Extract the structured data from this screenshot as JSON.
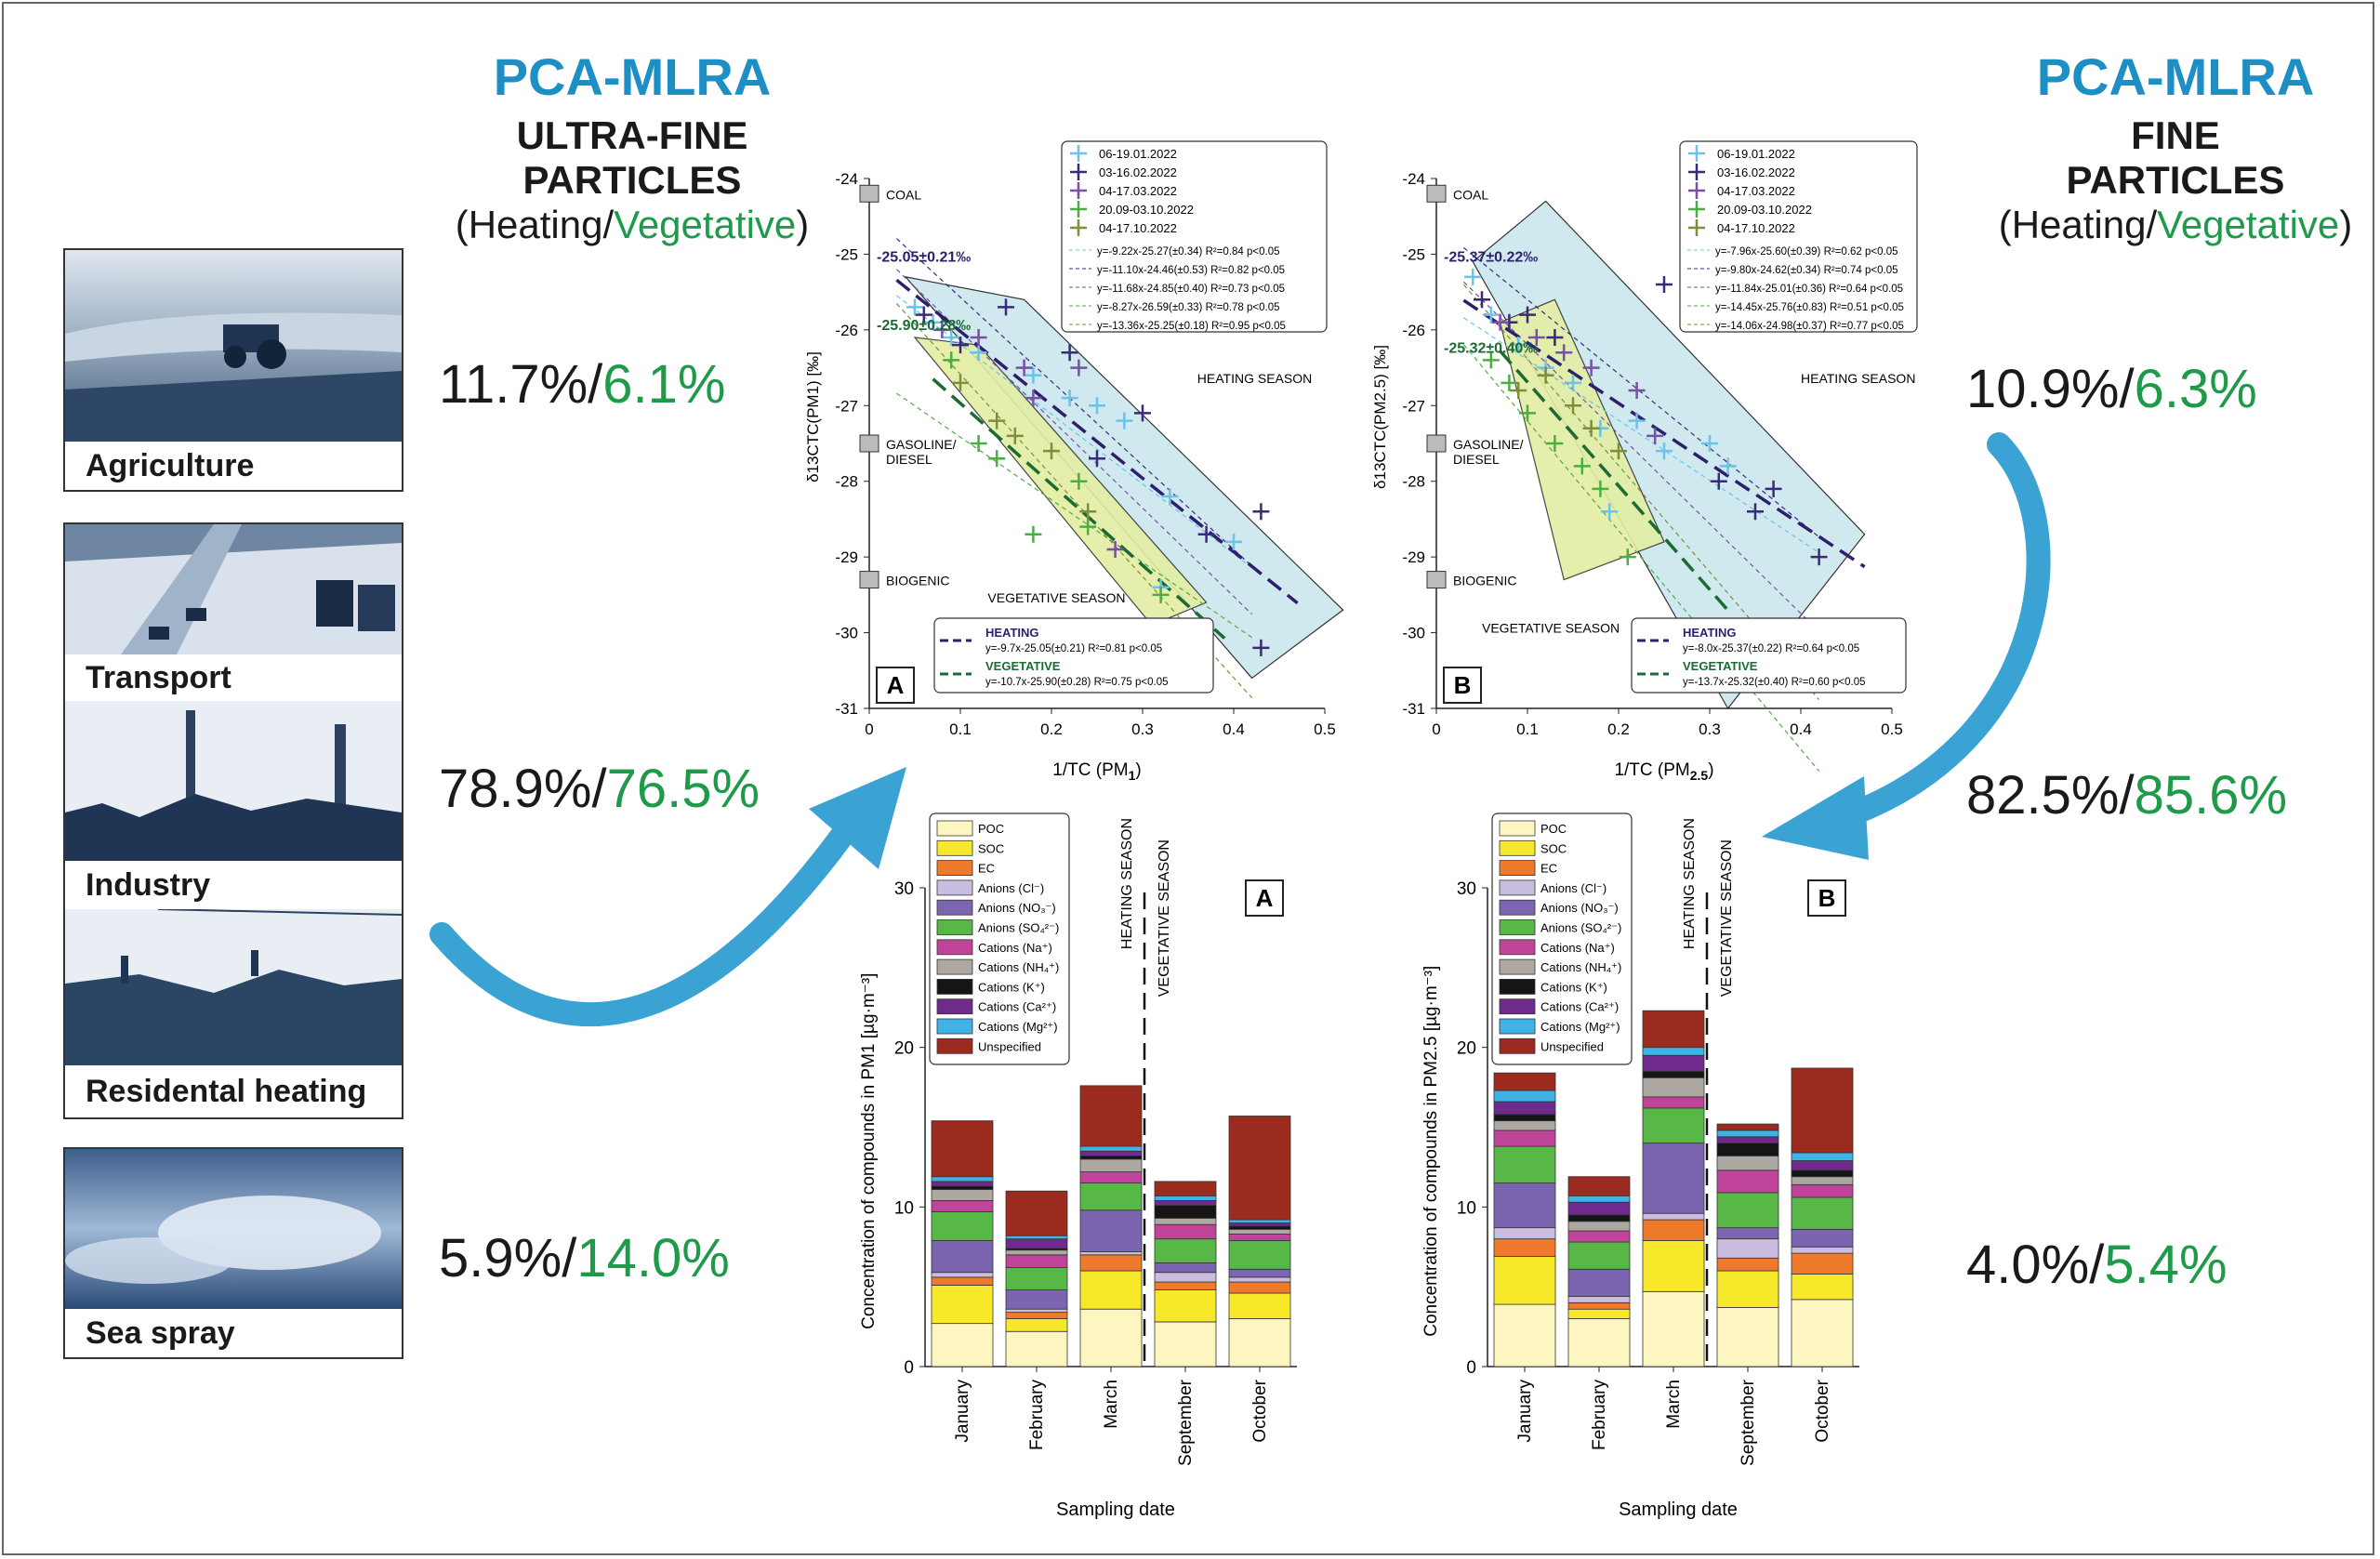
{
  "left_panel": {
    "method": "PCA-MLRA",
    "title_line1": "ULTRA-FINE",
    "title_line2": "PARTICLES",
    "subtitle_prefix": "(Heating/",
    "subtitle_green": "Vegetative",
    "subtitle_suffix": ")"
  },
  "right_panel": {
    "method": "PCA-MLRA",
    "title_line1": "FINE",
    "title_line2": "PARTICLES",
    "subtitle_prefix": "(Heating/",
    "subtitle_green": "Vegetative",
    "subtitle_suffix": ")"
  },
  "sources": [
    {
      "label": "Agriculture",
      "icon": "tractor-field-photo"
    },
    {
      "label": "Transport",
      "icon": "highway-traffic-photo"
    },
    {
      "label": "Industry",
      "icon": "industrial-chimney-photo"
    },
    {
      "label": "Residental heating",
      "icon": "rooftops-chimneys-photo"
    },
    {
      "label": "Sea spray",
      "icon": "ocean-waves-photo"
    }
  ],
  "contributions_uf": [
    {
      "heating": "11.7%/",
      "vegetative": "6.1%"
    },
    {
      "heating": "78.9%/",
      "vegetative": "76.5%"
    },
    {
      "heating": "5.9%/",
      "vegetative": "14.0%"
    }
  ],
  "contributions_f": [
    {
      "heating": "10.9%/",
      "vegetative": "6.3%"
    },
    {
      "heating": "82.5%/",
      "vegetative": "85.6%"
    },
    {
      "heating": "4.0%/",
      "vegetative": "5.4%"
    }
  ],
  "colors": {
    "accent_blue": "#1d8fc4",
    "arrow_blue": "#3aa3d4",
    "green_text": "#1e9a4a",
    "heating_line": "#2e1f6e",
    "vegetative_line": "#1b6b32",
    "heating_zone": "#cfe9ef",
    "vegetative_zone": "#e3eea3"
  },
  "chart_data": [
    {
      "type": "scatter",
      "panel_letter": "A",
      "xlabel_main": "1/TC (PM",
      "xlabel_sub": "1",
      "xlabel_end": ")",
      "ylabel_main": "δ13CTC(PM1) [‰]",
      "xlim": [
        0,
        0.5
      ],
      "ylim": [
        -31,
        -24
      ],
      "x_ticks": [
        "0",
        "0.1",
        "0.2",
        "0.3",
        "0.4",
        "0.5"
      ],
      "y_ticks": [
        "-24",
        "-25",
        "-26",
        "-27",
        "-28",
        "-29",
        "-30",
        "-31"
      ],
      "reference_markers": [
        {
          "label": "COAL",
          "y": -24.2
        },
        {
          "label": "GASOLINE/",
          "label2": "DIESEL",
          "y": -27.5
        },
        {
          "label": "BIOGENIC",
          "y": -29.3
        }
      ],
      "legend_series": [
        {
          "name": "06-19.01.2022",
          "color": "#6cc2e8"
        },
        {
          "name": "03-16.02.2022",
          "color": "#3a2a7a"
        },
        {
          "name": "04-17.03.2022",
          "color": "#7a4fa8"
        },
        {
          "name": "20.09-03.10.2022",
          "color": "#4cae42"
        },
        {
          "name": "04-17.10.2022",
          "color": "#7d8f3a"
        }
      ],
      "legend_equations": [
        "y=-9.22x-25.27(±0.34) R²=0.84 p<0.05",
        "y=-11.10x-24.46(±0.53) R²=0.82 p<0.05",
        "y=-11.68x-24.85(±0.40) R²=0.73 p<0.05",
        "y=-8.27x-26.59(±0.33) R²=0.78 p<0.05",
        "y=-13.36x-25.25(±0.18) R²=0.95 p<0.05"
      ],
      "heating_intercept_label": "-25.05±0.21‰",
      "vegetative_intercept_label": "-25.90±0.28‰",
      "zone_labels": {
        "heating": "HEATING SEASON",
        "vegetative": "VEGETATIVE SEASON"
      },
      "fit_box": {
        "heating_title": "HEATING",
        "heating_eq": "y=-9.7x-25.05(±0.21) R²=0.81 p<0.05",
        "vegetative_title": "VEGETATIVE",
        "vegetative_eq": "y=-10.7x-25.90(±0.28) R²=0.75 p<0.05"
      },
      "heating_fit": {
        "slope": -9.7,
        "intercept": -25.05
      },
      "vegetative_fit": {
        "slope": -10.7,
        "intercept": -25.9
      },
      "points": [
        {
          "s": 0,
          "x": 0.05,
          "y": -25.7
        },
        {
          "s": 0,
          "x": 0.07,
          "y": -25.9
        },
        {
          "s": 0,
          "x": 0.09,
          "y": -26.1
        },
        {
          "s": 0,
          "x": 0.12,
          "y": -26.3
        },
        {
          "s": 0,
          "x": 0.18,
          "y": -26.6
        },
        {
          "s": 0,
          "x": 0.22,
          "y": -26.9
        },
        {
          "s": 0,
          "x": 0.25,
          "y": -27.0
        },
        {
          "s": 0,
          "x": 0.28,
          "y": -27.2
        },
        {
          "s": 0,
          "x": 0.33,
          "y": -28.2
        },
        {
          "s": 0,
          "x": 0.4,
          "y": -28.8
        },
        {
          "s": 0,
          "x": 0.32,
          "y": -29.4
        },
        {
          "s": 1,
          "x": 0.06,
          "y": -25.8
        },
        {
          "s": 1,
          "x": 0.1,
          "y": -26.2
        },
        {
          "s": 1,
          "x": 0.15,
          "y": -25.7
        },
        {
          "s": 1,
          "x": 0.22,
          "y": -26.3
        },
        {
          "s": 1,
          "x": 0.25,
          "y": -27.7
        },
        {
          "s": 1,
          "x": 0.3,
          "y": -27.1
        },
        {
          "s": 1,
          "x": 0.37,
          "y": -28.7
        },
        {
          "s": 1,
          "x": 0.43,
          "y": -28.4
        },
        {
          "s": 1,
          "x": 0.43,
          "y": -30.2
        },
        {
          "s": 2,
          "x": 0.08,
          "y": -26.0
        },
        {
          "s": 2,
          "x": 0.12,
          "y": -26.1
        },
        {
          "s": 2,
          "x": 0.17,
          "y": -26.5
        },
        {
          "s": 2,
          "x": 0.18,
          "y": -26.9
        },
        {
          "s": 2,
          "x": 0.23,
          "y": -26.5
        },
        {
          "s": 2,
          "x": 0.27,
          "y": -28.9
        },
        {
          "s": 3,
          "x": 0.09,
          "y": -26.4
        },
        {
          "s": 3,
          "x": 0.12,
          "y": -27.5
        },
        {
          "s": 3,
          "x": 0.14,
          "y": -27.7
        },
        {
          "s": 3,
          "x": 0.18,
          "y": -28.7
        },
        {
          "s": 3,
          "x": 0.23,
          "y": -28.0
        },
        {
          "s": 3,
          "x": 0.24,
          "y": -28.6
        },
        {
          "s": 3,
          "x": 0.32,
          "y": -29.5
        },
        {
          "s": 4,
          "x": 0.1,
          "y": -26.7
        },
        {
          "s": 4,
          "x": 0.14,
          "y": -27.2
        },
        {
          "s": 4,
          "x": 0.16,
          "y": -27.4
        },
        {
          "s": 4,
          "x": 0.2,
          "y": -27.6
        },
        {
          "s": 4,
          "x": 0.24,
          "y": -28.4
        }
      ]
    },
    {
      "type": "scatter",
      "panel_letter": "B",
      "xlabel_main": "1/TC (PM",
      "xlabel_sub": "2.5",
      "xlabel_end": ")",
      "ylabel_main": "δ13CTC(PM2.5) [‰]",
      "xlim": [
        0,
        0.5
      ],
      "ylim": [
        -31,
        -24
      ],
      "x_ticks": [
        "0",
        "0.1",
        "0.2",
        "0.3",
        "0.4",
        "0.5"
      ],
      "y_ticks": [
        "-24",
        "-25",
        "-26",
        "-27",
        "-28",
        "-29",
        "-30",
        "-31"
      ],
      "reference_markers": [
        {
          "label": "COAL",
          "y": -24.2
        },
        {
          "label": "GASOLINE/",
          "label2": "DIESEL",
          "y": -27.5
        },
        {
          "label": "BIOGENIC",
          "y": -29.3
        }
      ],
      "legend_series": [
        {
          "name": "06-19.01.2022",
          "color": "#6cc2e8"
        },
        {
          "name": "03-16.02.2022",
          "color": "#3a2a7a"
        },
        {
          "name": "04-17.03.2022",
          "color": "#7a4fa8"
        },
        {
          "name": "20.09-03.10.2022",
          "color": "#4cae42"
        },
        {
          "name": "04-17.10.2022",
          "color": "#7d8f3a"
        }
      ],
      "legend_equations": [
        "y=-7.96x-25.60(±0.39) R²=0.62 p<0.05",
        "y=-9.80x-24.62(±0.34) R²=0.74 p<0.05",
        "y=-11.84x-25.01(±0.36) R²=0.64 p<0.05",
        "y=-14.45x-25.76(±0.83) R²=0.51 p<0.05",
        "y=-14.06x-24.98(±0.37) R²=0.77 p<0.05"
      ],
      "heating_intercept_label": "-25.37±0.22‰",
      "vegetative_intercept_label": "-25.32±0.40‰",
      "zone_labels": {
        "heating": "HEATING SEASON",
        "vegetative": "VEGETATIVE SEASON"
      },
      "fit_box": {
        "heating_title": "HEATING",
        "heating_eq": "y=-8.0x-25.37(±0.22) R²=0.64 p<0.05",
        "vegetative_title": "VEGETATIVE",
        "vegetative_eq": "y=-13.7x-25.32(±0.40) R²=0.60 p<0.05"
      },
      "heating_fit": {
        "slope": -8.0,
        "intercept": -25.37
      },
      "vegetative_fit": {
        "slope": -13.7,
        "intercept": -25.32
      },
      "points": [
        {
          "s": 0,
          "x": 0.04,
          "y": -25.3
        },
        {
          "s": 0,
          "x": 0.06,
          "y": -25.8
        },
        {
          "s": 0,
          "x": 0.09,
          "y": -26.2
        },
        {
          "s": 0,
          "x": 0.12,
          "y": -26.5
        },
        {
          "s": 0,
          "x": 0.15,
          "y": -26.7
        },
        {
          "s": 0,
          "x": 0.18,
          "y": -27.3
        },
        {
          "s": 0,
          "x": 0.22,
          "y": -27.2
        },
        {
          "s": 0,
          "x": 0.25,
          "y": -27.6
        },
        {
          "s": 0,
          "x": 0.3,
          "y": -27.5
        },
        {
          "s": 0,
          "x": 0.32,
          "y": -27.8
        },
        {
          "s": 0,
          "x": 0.19,
          "y": -28.4
        },
        {
          "s": 1,
          "x": 0.05,
          "y": -25.6
        },
        {
          "s": 1,
          "x": 0.08,
          "y": -25.9
        },
        {
          "s": 1,
          "x": 0.1,
          "y": -25.8
        },
        {
          "s": 1,
          "x": 0.13,
          "y": -26.1
        },
        {
          "s": 1,
          "x": 0.25,
          "y": -25.4
        },
        {
          "s": 1,
          "x": 0.31,
          "y": -28.0
        },
        {
          "s": 1,
          "x": 0.35,
          "y": -28.4
        },
        {
          "s": 1,
          "x": 0.37,
          "y": -28.1
        },
        {
          "s": 1,
          "x": 0.42,
          "y": -29.0
        },
        {
          "s": 2,
          "x": 0.07,
          "y": -25.9
        },
        {
          "s": 2,
          "x": 0.11,
          "y": -26.1
        },
        {
          "s": 2,
          "x": 0.14,
          "y": -26.3
        },
        {
          "s": 2,
          "x": 0.17,
          "y": -26.5
        },
        {
          "s": 2,
          "x": 0.22,
          "y": -26.8
        },
        {
          "s": 2,
          "x": 0.24,
          "y": -27.4
        },
        {
          "s": 3,
          "x": 0.06,
          "y": -26.4
        },
        {
          "s": 3,
          "x": 0.08,
          "y": -26.7
        },
        {
          "s": 3,
          "x": 0.1,
          "y": -27.1
        },
        {
          "s": 3,
          "x": 0.13,
          "y": -27.5
        },
        {
          "s": 3,
          "x": 0.16,
          "y": -27.8
        },
        {
          "s": 3,
          "x": 0.18,
          "y": -28.1
        },
        {
          "s": 3,
          "x": 0.21,
          "y": -29.0
        },
        {
          "s": 4,
          "x": 0.09,
          "y": -26.8
        },
        {
          "s": 4,
          "x": 0.12,
          "y": -26.6
        },
        {
          "s": 4,
          "x": 0.15,
          "y": -27.0
        },
        {
          "s": 4,
          "x": 0.17,
          "y": -27.3
        },
        {
          "s": 4,
          "x": 0.2,
          "y": -27.6
        }
      ]
    },
    {
      "type": "bar",
      "stacked": true,
      "panel_letter": "A",
      "ylabel": "Concentration of compounds in PM1 [µg·m⁻³]",
      "xlabel": "Sampling date",
      "ylim": [
        0,
        30
      ],
      "y_ticks": [
        "0",
        "10",
        "20",
        "30"
      ],
      "categories": [
        "January",
        "February",
        "March",
        "September",
        "October"
      ],
      "season_labels": {
        "heating": "HEATING SEASON",
        "vegetative": "VEGETATIVE SEASON"
      },
      "components": [
        "POC",
        "SOC",
        "EC",
        "Anions (Cl⁻)",
        "Anions (NO₃⁻)",
        "Anions (SO₄²⁻)",
        "Cations (Na⁺)",
        "Cations (NH₄⁺)",
        "Cations (K⁺)",
        "Cations (Ca²⁺)",
        "Cations (Mg²⁺)",
        "Unspecified"
      ],
      "component_colors": [
        "#fdf6c0",
        "#f8e82a",
        "#ef7a2c",
        "#cbbde0",
        "#7c65b0",
        "#58b847",
        "#c0449a",
        "#aea8a2",
        "#151515",
        "#6e2a8c",
        "#3fb3e6",
        "#9b2a1f"
      ],
      "values": [
        [
          2.7,
          2.4,
          0.5,
          0.3,
          2.0,
          1.8,
          0.7,
          0.7,
          0.2,
          0.3,
          0.3,
          3.5
        ],
        [
          2.2,
          0.8,
          0.4,
          0.2,
          1.2,
          1.4,
          0.8,
          0.3,
          0.1,
          0.6,
          0.2,
          2.8
        ],
        [
          3.6,
          2.4,
          1.0,
          0.2,
          2.6,
          1.7,
          0.7,
          0.8,
          0.2,
          0.3,
          0.3,
          3.8
        ],
        [
          2.8,
          2.0,
          0.5,
          0.6,
          0.6,
          1.5,
          0.9,
          0.4,
          0.8,
          0.3,
          0.3,
          0.9
        ],
        [
          3.0,
          1.6,
          0.7,
          0.3,
          0.5,
          1.8,
          0.4,
          0.3,
          0.2,
          0.2,
          0.2,
          6.5
        ]
      ]
    },
    {
      "type": "bar",
      "stacked": true,
      "panel_letter": "B",
      "ylabel": "Concentration of compounds in PM2.5 [µg·m⁻³]",
      "xlabel": "Sampling date",
      "ylim": [
        0,
        30
      ],
      "y_ticks": [
        "0",
        "10",
        "20",
        "30"
      ],
      "categories": [
        "January",
        "February",
        "March",
        "September",
        "October"
      ],
      "season_labels": {
        "heating": "HEATING SEASON",
        "vegetative": "VEGETATIVE SEASON"
      },
      "components": [
        "POC",
        "SOC",
        "EC",
        "Anions (Cl⁻)",
        "Anions (NO₃⁻)",
        "Anions (SO₄²⁻)",
        "Cations (Na⁺)",
        "Cations (NH₄⁺)",
        "Cations (K⁺)",
        "Cations (Ca²⁺)",
        "Cations (Mg²⁺)",
        "Unspecified"
      ],
      "component_colors": [
        "#fdf6c0",
        "#f8e82a",
        "#ef7a2c",
        "#cbbde0",
        "#7c65b0",
        "#58b847",
        "#c0449a",
        "#aea8a2",
        "#151515",
        "#6e2a8c",
        "#3fb3e6",
        "#9b2a1f"
      ],
      "values": [
        [
          3.9,
          3.0,
          1.1,
          0.7,
          2.8,
          2.3,
          1.0,
          0.6,
          0.4,
          0.8,
          0.7,
          1.1
        ],
        [
          3.0,
          0.6,
          0.4,
          0.4,
          1.7,
          1.7,
          0.7,
          0.6,
          0.4,
          0.8,
          0.4,
          1.2
        ],
        [
          4.7,
          3.2,
          1.3,
          0.4,
          4.4,
          2.2,
          0.7,
          1.2,
          0.4,
          1.0,
          0.5,
          2.3
        ],
        [
          3.7,
          2.3,
          0.8,
          1.2,
          0.7,
          2.2,
          1.4,
          0.9,
          0.8,
          0.4,
          0.4,
          0.4
        ],
        [
          4.2,
          1.6,
          1.3,
          0.4,
          1.1,
          2.0,
          0.8,
          0.5,
          0.4,
          0.6,
          0.5,
          5.3
        ]
      ]
    }
  ]
}
